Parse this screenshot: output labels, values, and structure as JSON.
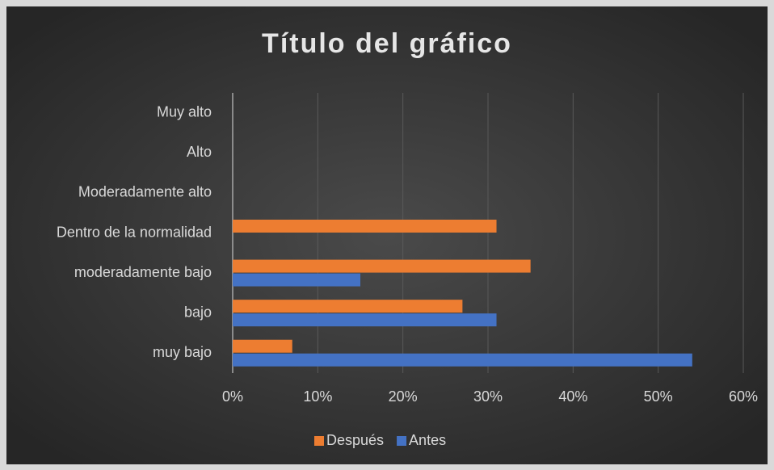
{
  "chart_data": {
    "type": "bar",
    "orientation": "horizontal",
    "title": "Título del gráfico",
    "categories": [
      "Muy alto",
      "Alto",
      "Moderadamente alto",
      "Dentro de la normalidad",
      "moderadamente bajo",
      "bajo",
      "muy bajo"
    ],
    "series": [
      {
        "name": "Después",
        "color": "#ed7d31",
        "values": [
          0,
          0,
          0,
          31,
          35,
          27,
          7
        ]
      },
      {
        "name": "Antes",
        "color": "#4472c4",
        "values": [
          0,
          0,
          0,
          0,
          15,
          31,
          54
        ]
      }
    ],
    "xlim": [
      0,
      60
    ],
    "xticks": [
      {
        "value": 0,
        "label": "0%"
      },
      {
        "value": 10,
        "label": "10%"
      },
      {
        "value": 20,
        "label": "20%"
      },
      {
        "value": 30,
        "label": "30%"
      },
      {
        "value": 40,
        "label": "40%"
      },
      {
        "value": 50,
        "label": "50%"
      },
      {
        "value": 60,
        "label": "60%"
      }
    ],
    "grid": true,
    "legend": "bottom"
  }
}
